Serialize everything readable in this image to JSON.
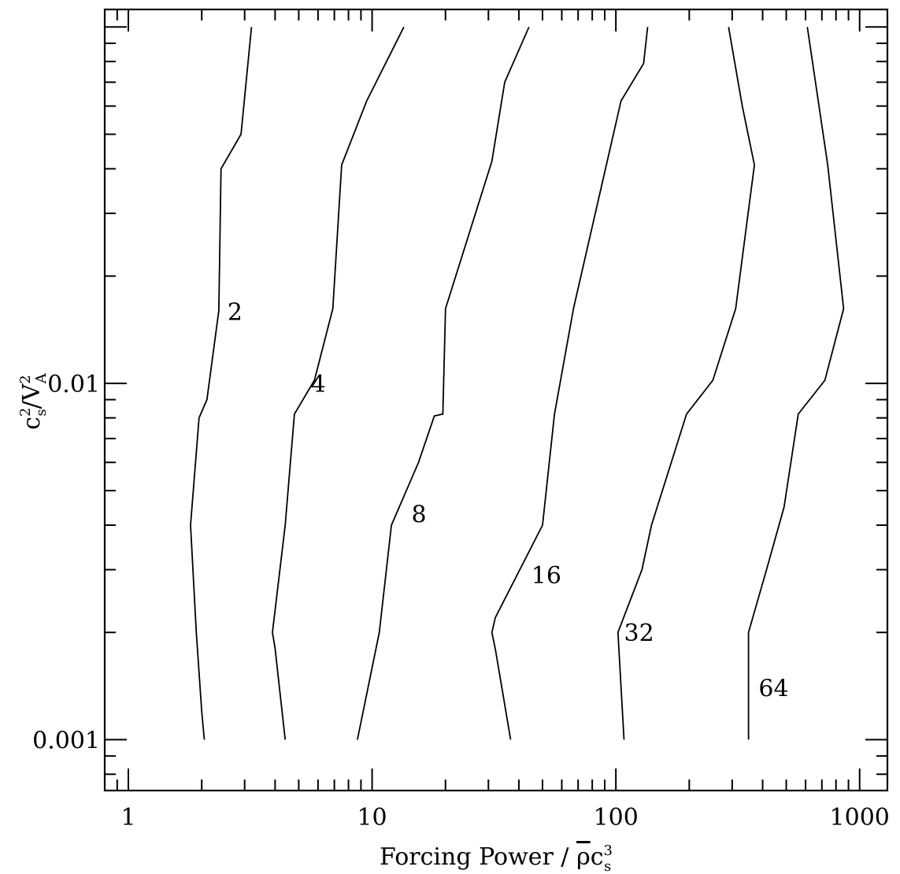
{
  "chart_data": {
    "type": "line",
    "subtype": "contour",
    "title": "",
    "xlabel": {
      "prefix": "Forcing Power / ",
      "rho": "ρ",
      "c": "c",
      "sup": "3",
      "sub": "s"
    },
    "ylabel": {
      "c": "c",
      "c_sup": "2",
      "c_sub": "s",
      "slash": "/V",
      "v_sup": "2",
      "v_sub": "A"
    },
    "xscale": "log",
    "yscale": "log",
    "xlim": [
      0.8,
      1300
    ],
    "ylim": [
      0.00072,
      0.112
    ],
    "xticks": [
      {
        "value": 1,
        "label": "1"
      },
      {
        "value": 10,
        "label": "10"
      },
      {
        "value": 100,
        "label": "100"
      },
      {
        "value": 1000,
        "label": "1000"
      }
    ],
    "yticks": [
      {
        "value": 0.001,
        "label": "0.001"
      },
      {
        "value": 0.01,
        "label": "0.01"
      }
    ],
    "series": [
      {
        "name": "2",
        "label_at": [
          2.55,
          0.0159
        ],
        "x": [
          3.2,
          2.9,
          2.4,
          2.35,
          2.1,
          1.95,
          1.8,
          1.9,
          2.0,
          2.05
        ],
        "y": [
          0.1,
          0.05,
          0.04,
          0.016,
          0.009,
          0.008,
          0.004,
          0.002,
          0.0012,
          0.001
        ]
      },
      {
        "name": "4",
        "label_at": [
          5.6,
          0.01
        ],
        "x": [
          13.5,
          9.5,
          7.5,
          6.9,
          5.8,
          4.8,
          4.4,
          3.9,
          4.0,
          4.4
        ],
        "y": [
          0.1,
          0.062,
          0.041,
          0.0162,
          0.0102,
          0.0082,
          0.004,
          0.002,
          0.0018,
          0.001
        ]
      },
      {
        "name": "8",
        "label_at": [
          14.5,
          0.0043
        ],
        "x": [
          44,
          35,
          31,
          20,
          19.5,
          18,
          15.5,
          12,
          10.7,
          8.7
        ],
        "y": [
          0.1,
          0.07,
          0.042,
          0.0162,
          0.0082,
          0.0081,
          0.006,
          0.004,
          0.002,
          0.001
        ]
      },
      {
        "name": "16",
        "label_at": [
          45,
          0.0029
        ],
        "x": [
          135,
          130,
          105,
          67,
          56,
          50,
          32,
          31,
          32,
          37
        ],
        "y": [
          0.1,
          0.079,
          0.062,
          0.0162,
          0.0082,
          0.004,
          0.0022,
          0.002,
          0.0018,
          0.001
        ]
      },
      {
        "name": "32",
        "label_at": [
          108,
          0.002
        ],
        "x": [
          290,
          330,
          370,
          310,
          250,
          195,
          140,
          128,
          102,
          108
        ],
        "y": [
          0.1,
          0.06,
          0.041,
          0.0162,
          0.0102,
          0.0082,
          0.004,
          0.003,
          0.002,
          0.001
        ]
      },
      {
        "name": "64",
        "label_at": [
          385,
          0.0014
        ],
        "x": [
          610,
          740,
          860,
          720,
          560,
          490,
          415,
          350,
          350
        ],
        "y": [
          0.1,
          0.041,
          0.0162,
          0.0102,
          0.0082,
          0.0045,
          0.003,
          0.002,
          0.001
        ]
      }
    ]
  }
}
